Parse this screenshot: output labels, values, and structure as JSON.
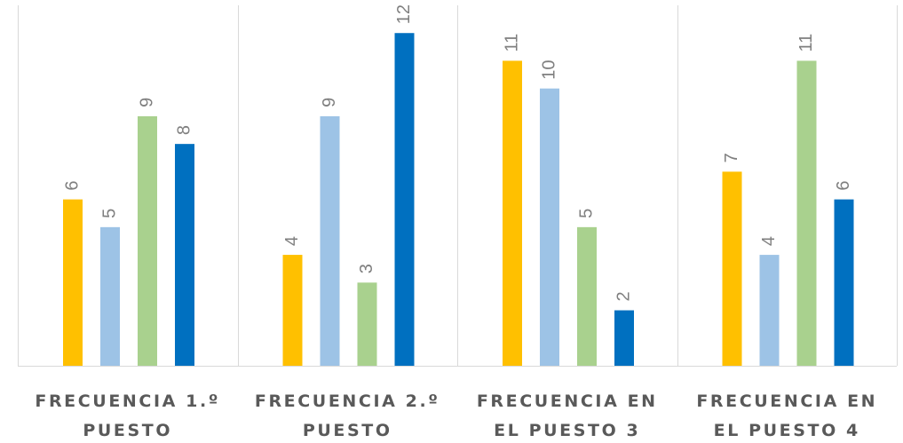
{
  "chart_data": {
    "type": "bar",
    "categories": [
      [
        "FRECUENCIA 1.º",
        "PUESTO"
      ],
      [
        "FRECUENCIA 2.º",
        "PUESTO"
      ],
      [
        "FRECUENCIA EN",
        "EL PUESTO 3"
      ],
      [
        "FRECUENCIA EN",
        "EL PUESTO 4"
      ]
    ],
    "series": [
      {
        "values": [
          6,
          4,
          11,
          7
        ]
      },
      {
        "values": [
          5,
          9,
          10,
          4
        ]
      },
      {
        "values": [
          9,
          3,
          5,
          11
        ]
      },
      {
        "values": [
          8,
          12,
          2,
          6
        ]
      }
    ],
    "ylim": [
      0,
      13
    ],
    "grid": false,
    "data_labels": true,
    "colors": [
      "#FFC000",
      "#9DC3E6",
      "#A9D18E",
      "#0070C0"
    ],
    "axis_color": "#d9d9d9",
    "label_color": "#7f7f7f",
    "category_color": "#595959"
  }
}
